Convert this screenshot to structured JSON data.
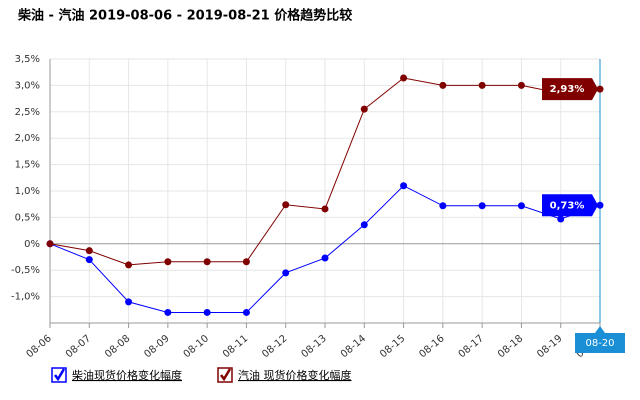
{
  "chart_data": {
    "type": "line",
    "title": "柴油 - 汽油 2019-08-06 - 2019-08-21 价格趋势比较",
    "categories": [
      "08-06",
      "08-07",
      "08-08",
      "08-09",
      "08-10",
      "08-11",
      "08-12",
      "08-13",
      "08-14",
      "08-15",
      "08-16",
      "08-17",
      "08-18",
      "08-19",
      "08-20"
    ],
    "series": [
      {
        "name": "柴油现货价格变化幅度",
        "color": "#0000ff",
        "values": [
          0,
          -0.3,
          -1.1,
          -1.3,
          -1.3,
          -1.3,
          -0.55,
          -0.27,
          0.36,
          1.1,
          0.72,
          0.72,
          0.72,
          0.47,
          0.73
        ],
        "value_labels": [
          null,
          null,
          null,
          null,
          null,
          null,
          null,
          null,
          null,
          null,
          null,
          null,
          null,
          null,
          "0,73%"
        ]
      },
      {
        "name": "汽油 现货价格变化幅度",
        "color": "#800000",
        "values": [
          0,
          -0.13,
          -0.4,
          -0.34,
          -0.34,
          -0.34,
          0.74,
          0.66,
          2.55,
          3.14,
          3.0,
          3.0,
          3.0,
          2.85,
          2.93
        ],
        "value_labels": [
          null,
          null,
          null,
          null,
          null,
          null,
          null,
          null,
          null,
          null,
          null,
          null,
          null,
          null,
          "2,93%"
        ]
      }
    ],
    "ylim": [
      -1.5,
      3.5
    ],
    "yticks": [
      {
        "value": -1.0,
        "label": "-1,0%"
      },
      {
        "value": -0.5,
        "label": "-0,5%"
      },
      {
        "value": 0,
        "label": "0%"
      },
      {
        "value": 0.5,
        "label": "0,5%"
      },
      {
        "value": 1.0,
        "label": "1,0%"
      },
      {
        "value": 1.5,
        "label": "1,5%"
      },
      {
        "value": 2.0,
        "label": "2,0%"
      },
      {
        "value": 2.5,
        "label": "2,5%"
      },
      {
        "value": 3.0,
        "label": "3,0%"
      },
      {
        "value": 3.5,
        "label": "3,5%"
      }
    ],
    "grid": true
  }
}
